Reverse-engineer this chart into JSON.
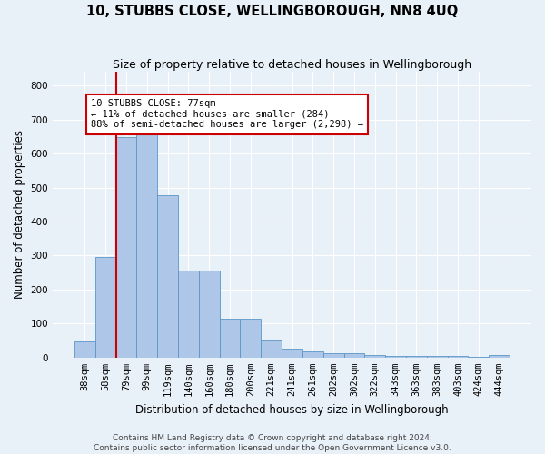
{
  "title": "10, STUBBS CLOSE, WELLINGBOROUGH, NN8 4UQ",
  "subtitle": "Size of property relative to detached houses in Wellingborough",
  "xlabel": "Distribution of detached houses by size in Wellingborough",
  "ylabel": "Number of detached properties",
  "categories": [
    "38sqm",
    "58sqm",
    "79sqm",
    "99sqm",
    "119sqm",
    "140sqm",
    "160sqm",
    "180sqm",
    "200sqm",
    "221sqm",
    "241sqm",
    "261sqm",
    "282sqm",
    "302sqm",
    "322sqm",
    "343sqm",
    "363sqm",
    "383sqm",
    "403sqm",
    "424sqm",
    "444sqm"
  ],
  "values": [
    47,
    295,
    648,
    660,
    477,
    255,
    255,
    114,
    114,
    52,
    27,
    18,
    14,
    14,
    8,
    5,
    5,
    4,
    4,
    2,
    7
  ],
  "bar_color": "#aec6e8",
  "bar_edge_color": "#5a96c8",
  "vline_x": 1.5,
  "vline_color": "#cc0000",
  "annotation_text": "10 STUBBS CLOSE: 77sqm\n← 11% of detached houses are smaller (284)\n88% of semi-detached houses are larger (2,298) →",
  "annotation_box_color": "#ffffff",
  "annotation_box_edge_color": "#cc0000",
  "ylim": [
    0,
    840
  ],
  "yticks": [
    0,
    100,
    200,
    300,
    400,
    500,
    600,
    700,
    800
  ],
  "footer_line1": "Contains HM Land Registry data © Crown copyright and database right 2024.",
  "footer_line2": "Contains public sector information licensed under the Open Government Licence v3.0.",
  "background_color": "#e8f0f8",
  "plot_background_color": "#e8f0f8",
  "grid_color": "#ffffff",
  "title_fontsize": 10.5,
  "subtitle_fontsize": 9,
  "axis_label_fontsize": 8.5,
  "tick_fontsize": 7.5,
  "annotation_fontsize": 7.5,
  "footer_fontsize": 6.5
}
